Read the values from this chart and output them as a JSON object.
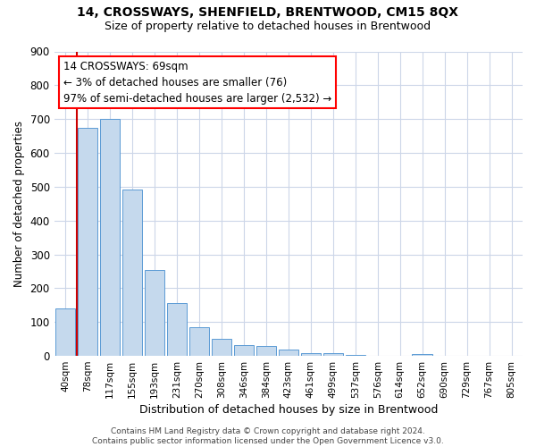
{
  "title": "14, CROSSWAYS, SHENFIELD, BRENTWOOD, CM15 8QX",
  "subtitle": "Size of property relative to detached houses in Brentwood",
  "xlabel": "Distribution of detached houses by size in Brentwood",
  "ylabel": "Number of detached properties",
  "bar_labels": [
    "40sqm",
    "78sqm",
    "117sqm",
    "155sqm",
    "193sqm",
    "231sqm",
    "270sqm",
    "308sqm",
    "346sqm",
    "384sqm",
    "423sqm",
    "461sqm",
    "499sqm",
    "537sqm",
    "576sqm",
    "614sqm",
    "652sqm",
    "690sqm",
    "729sqm",
    "767sqm",
    "805sqm"
  ],
  "bar_values": [
    140,
    675,
    700,
    493,
    255,
    155,
    86,
    50,
    32,
    28,
    20,
    8,
    8,
    3,
    0,
    0,
    5,
    0,
    0,
    0,
    0
  ],
  "bar_color": "#c5d9ed",
  "bar_edge_color": "#5b9bd5",
  "ylim": [
    0,
    900
  ],
  "yticks": [
    0,
    100,
    200,
    300,
    400,
    500,
    600,
    700,
    800,
    900
  ],
  "property_label": "14 CROSSWAYS: 69sqm",
  "annotation_line1": "← 3% of detached houses are smaller (76)",
  "annotation_line2": "97% of semi-detached houses are larger (2,532) →",
  "footer_line1": "Contains HM Land Registry data © Crown copyright and database right 2024.",
  "footer_line2": "Contains public sector information licensed under the Open Government Licence v3.0.",
  "background_color": "#ffffff",
  "grid_color": "#ccd6e8"
}
